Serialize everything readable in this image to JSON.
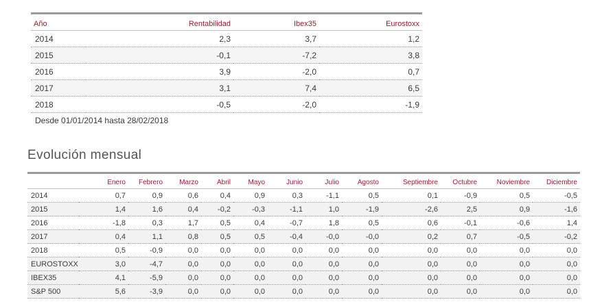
{
  "annual": {
    "headers": [
      "Año",
      "Rentabilidad",
      "Ibex35",
      "Eurostoxx"
    ],
    "rows": [
      [
        "2014",
        "2,3",
        "3,7",
        "1,2"
      ],
      [
        "2015",
        "-0,1",
        "-7,2",
        "3,8"
      ],
      [
        "2016",
        "3,9",
        "-2,0",
        "0,7"
      ],
      [
        "2017",
        "3,1",
        "7,4",
        "6,5"
      ],
      [
        "2018",
        "-0,5",
        "-2,0",
        "-1,9"
      ]
    ],
    "note": "Desde 01/01/2014 hasta 28/02/2018"
  },
  "monthly": {
    "title": "Evolución mensual",
    "headers": [
      "",
      "Enero",
      "Febrero",
      "Marzo",
      "Abril",
      "Mayo",
      "Junio",
      "Julio",
      "Agosto",
      "Septiembre",
      "Octubre",
      "Noviembre",
      "Diciembre"
    ],
    "rows": [
      [
        "2014",
        "0,7",
        "0,9",
        "0,6",
        "0,4",
        "0,9",
        "0,3",
        "-1,1",
        "0,5",
        "0,1",
        "-0,9",
        "0,5",
        "-0,5"
      ],
      [
        "2015",
        "1,4",
        "1,6",
        "0,4",
        "-0,2",
        "-0,3",
        "-1,1",
        "1,0",
        "-1,9",
        "-2,6",
        "2,5",
        "0,9",
        "-1,6"
      ],
      [
        "2016",
        "-1,8",
        "0,3",
        "1,7",
        "0,5",
        "0,4",
        "-0,7",
        "1,8",
        "0,5",
        "0,6",
        "-0,1",
        "-0,6",
        "1,4"
      ],
      [
        "2017",
        "0,4",
        "1,1",
        "0,8",
        "0,5",
        "0,5",
        "-0,4",
        "-0,0",
        "-0,0",
        "0,2",
        "0,7",
        "-0,5",
        "-0,2"
      ],
      [
        "2018",
        "0,5",
        "-0,9",
        "0,0",
        "0,0",
        "0,0",
        "0,0",
        "0,0",
        "0,0",
        "0,0",
        "0,0",
        "0,0",
        "0,0"
      ],
      [
        "EUROSTOXX",
        "3,0",
        "-4,7",
        "0,0",
        "0,0",
        "0,0",
        "0,0",
        "0,0",
        "0,0",
        "0,0",
        "0,0",
        "0,0",
        "0,0"
      ],
      [
        "IBEX35",
        "4,1",
        "-5,9",
        "0,0",
        "0,0",
        "0,0",
        "0,0",
        "0,0",
        "0,0",
        "0,0",
        "0,0",
        "0,0",
        "0,0"
      ],
      [
        "S&P 500",
        "5,6",
        "-3,9",
        "0,0",
        "0,0",
        "0,0",
        "0,0",
        "0,0",
        "0,0",
        "0,0",
        "0,0",
        "0,0",
        "0,0"
      ]
    ]
  },
  "colors": {
    "header_text": "#9b1c31",
    "rule": "#9a9a9a"
  }
}
